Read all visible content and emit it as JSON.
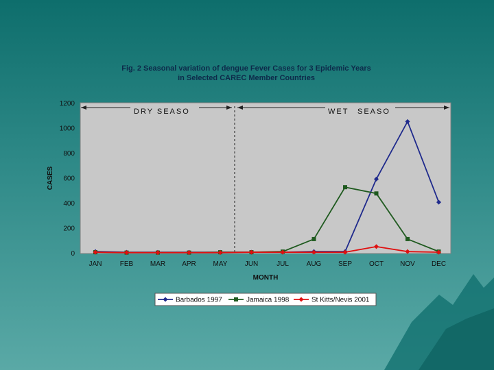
{
  "chart_data": {
    "type": "line",
    "title_line1": "Fig. 2 Seasonal variation of dengue Fever Cases for 3 Epidemic Years",
    "title_line2": "in Selected CAREC Member Countries",
    "xlabel": "MONTH",
    "ylabel": "CASES",
    "ylim": [
      0,
      1200
    ],
    "yticks": [
      "0",
      "200",
      "400",
      "600",
      "800",
      "1000",
      "1200"
    ],
    "categories": [
      "JAN",
      "FEB",
      "MAR",
      "APR",
      "MAY",
      "JUN",
      "JUL",
      "AUG",
      "SEP",
      "OCT",
      "NOV",
      "DEC"
    ],
    "annotations": {
      "dry_season": "DRY SEASO",
      "wet_season_1": "WET",
      "wet_season_2": "SEASO"
    },
    "legend_position": "bottom",
    "grid": false,
    "series": [
      {
        "name": "Barbados 1997",
        "color": "#1f2a8c",
        "marker": "diamond",
        "values": [
          10,
          5,
          5,
          5,
          5,
          5,
          5,
          10,
          10,
          590,
          1050,
          405
        ]
      },
      {
        "name": "Jamaica 1998",
        "color": "#1f5a1f",
        "marker": "square",
        "values": [
          5,
          2,
          2,
          2,
          5,
          5,
          10,
          110,
          525,
          475,
          110,
          10
        ]
      },
      {
        "name": "St Kitts/Nevis 2001",
        "color": "#e01010",
        "marker": "diamond",
        "values": [
          5,
          2,
          2,
          2,
          2,
          5,
          5,
          5,
          5,
          50,
          10,
          5
        ]
      }
    ]
  }
}
